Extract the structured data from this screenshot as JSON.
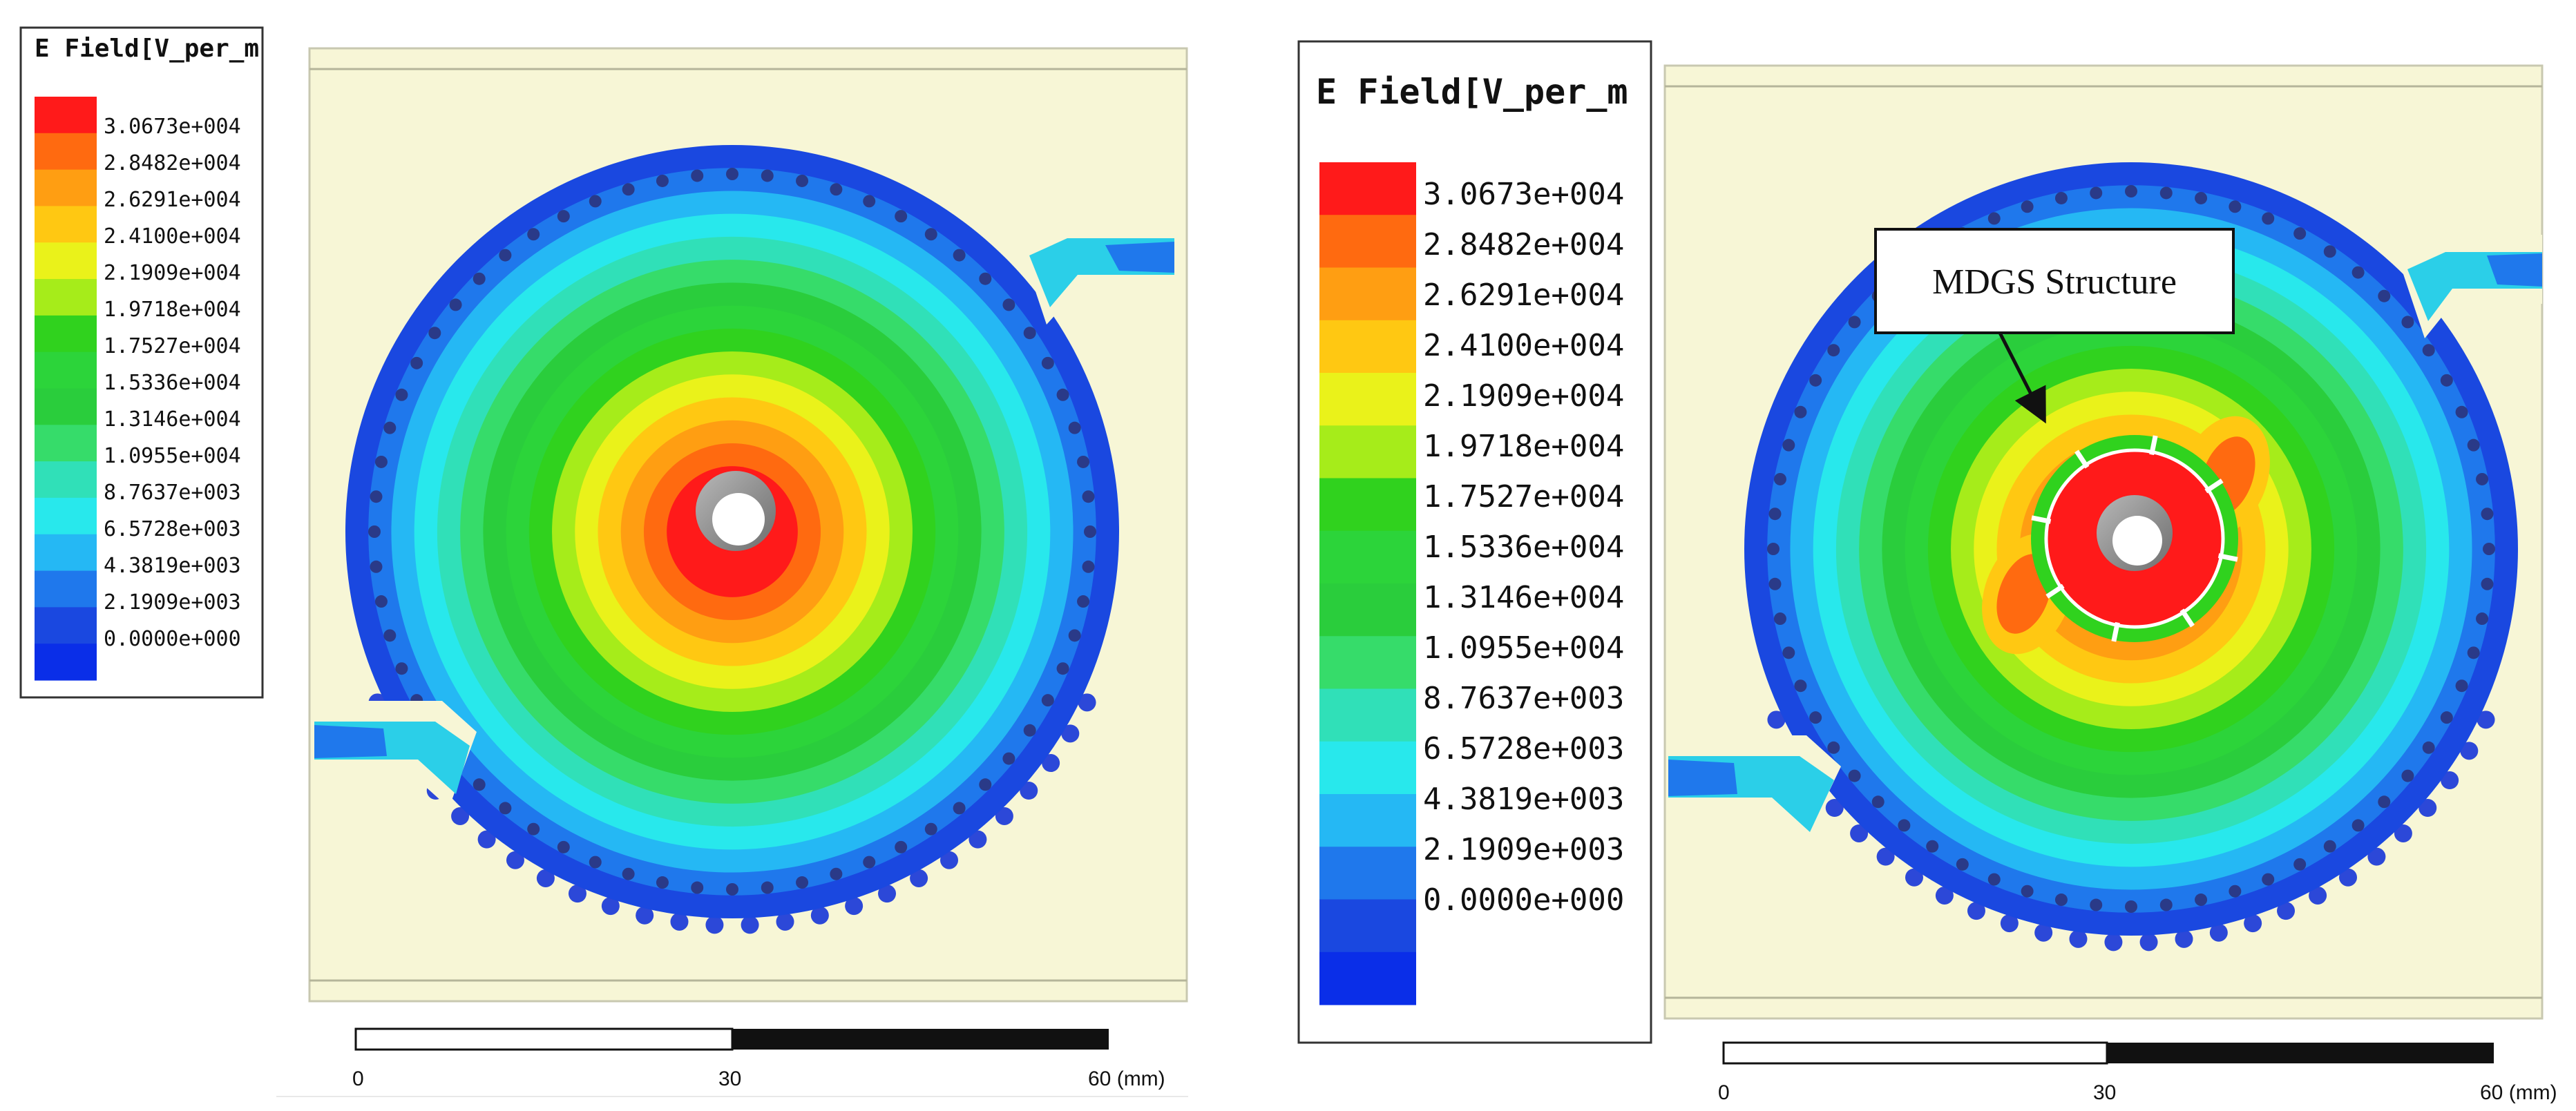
{
  "panels": [
    {
      "legend": {
        "title": "E Field[V_per_m",
        "values": [
          "3.0673e+004",
          "2.8482e+004",
          "2.6291e+004",
          "2.4100e+004",
          "2.1909e+004",
          "1.9718e+004",
          "1.7527e+004",
          "1.5336e+004",
          "1.3146e+004",
          "1.0955e+004",
          "8.7637e+003",
          "6.5728e+003",
          "4.3819e+003",
          "2.1909e+003",
          "0.0000e+000"
        ]
      },
      "scale_bar": {
        "labels": [
          "0",
          "30",
          "60 (mm)"
        ]
      }
    },
    {
      "legend": {
        "title": "E Field[V_per_m",
        "values": [
          "3.0673e+004",
          "2.8482e+004",
          "2.6291e+004",
          "2.4100e+004",
          "2.1909e+004",
          "1.9718e+004",
          "1.7527e+004",
          "1.5336e+004",
          "1.3146e+004",
          "1.0955e+004",
          "8.7637e+003",
          "6.5728e+003",
          "4.3819e+003",
          "2.1909e+003",
          "0.0000e+000"
        ]
      },
      "scale_bar": {
        "labels": [
          "0",
          "30",
          "60 (mm)"
        ]
      },
      "callout": {
        "label": "MDGS Structure"
      }
    }
  ],
  "colormap": [
    "#ff1a1a",
    "#ff6a10",
    "#ff9e12",
    "#ffc812",
    "#eaf21a",
    "#a6ec1a",
    "#30d21e",
    "#2cd43a",
    "#2acd3c",
    "#36dc6a",
    "#30e0b8",
    "#28e8ec",
    "#25b8f4",
    "#1f78ec",
    "#1a48e0",
    "#0a2ee8"
  ],
  "substrate_color": "#f7f6d6",
  "edge_color": "#2c48d8",
  "hole_color": "#2a3a88"
}
